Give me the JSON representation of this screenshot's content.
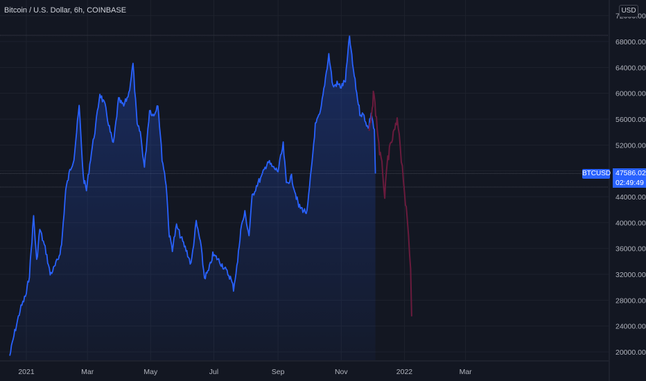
{
  "header": {
    "title": "Bitcoin / U.S. Dollar, 6h, COINBASE",
    "currency": "USD"
  },
  "price_label": {
    "symbol": "BTCUSD",
    "price": "47586.02",
    "countdown": "02:49:49"
  },
  "colors": {
    "background": "#131722",
    "line": "#2962ff",
    "projection": "#6a1b3d",
    "grid": "#1e222d"
  },
  "chart_data": {
    "type": "line",
    "title": "Bitcoin / U.S. Dollar, 6h, COINBASE",
    "xlabel": "",
    "ylabel": "",
    "x_tick_labels": [
      "2021",
      "Mar",
      "May",
      "Jul",
      "Sep",
      "Nov",
      "2022",
      "Mar"
    ],
    "y_tick_labels": [
      "20000.00",
      "24000.00",
      "28000.00",
      "32000.00",
      "36000.00",
      "40000.00",
      "44000.00",
      "48000.00",
      "52000.00",
      "56000.00",
      "60000.00",
      "64000.00",
      "68000.00",
      "72000.00"
    ],
    "ylim": [
      20000,
      72000
    ],
    "grid": true,
    "series": [
      {
        "values": [
          [
            "2020-12-16",
            19400
          ],
          [
            "2020-12-20",
            22500
          ],
          [
            "2020-12-26",
            26500
          ],
          [
            "2021-01-01",
            29000
          ],
          [
            "2021-01-04",
            32000
          ],
          [
            "2021-01-08",
            41000
          ],
          [
            "2021-01-11",
            34000
          ],
          [
            "2021-01-14",
            39000
          ],
          [
            "2021-01-20",
            35500
          ],
          [
            "2021-01-24",
            32000
          ],
          [
            "2021-01-28",
            33000
          ],
          [
            "2021-02-01",
            34500
          ],
          [
            "2021-02-04",
            36500
          ],
          [
            "2021-02-08",
            45000
          ],
          [
            "2021-02-12",
            48000
          ],
          [
            "2021-02-16",
            50000
          ],
          [
            "2021-02-21",
            58000
          ],
          [
            "2021-02-25",
            47000
          ],
          [
            "2021-02-28",
            45000
          ],
          [
            "2021-03-04",
            50000
          ],
          [
            "2021-03-09",
            55000
          ],
          [
            "2021-03-13",
            60000
          ],
          [
            "2021-03-18",
            58000
          ],
          [
            "2021-03-23",
            54000
          ],
          [
            "2021-03-26",
            52000
          ],
          [
            "2021-03-31",
            59000
          ],
          [
            "2021-04-05",
            58000
          ],
          [
            "2021-04-10",
            60000
          ],
          [
            "2021-04-14",
            64500
          ],
          [
            "2021-04-18",
            55000
          ],
          [
            "2021-04-21",
            54000
          ],
          [
            "2021-04-25",
            48500
          ],
          [
            "2021-04-30",
            57500
          ],
          [
            "2021-05-04",
            56500
          ],
          [
            "2021-05-08",
            58500
          ],
          [
            "2021-05-12",
            50000
          ],
          [
            "2021-05-16",
            46000
          ],
          [
            "2021-05-19",
            38000
          ],
          [
            "2021-05-22",
            36000
          ],
          [
            "2021-05-26",
            39500
          ],
          [
            "2021-06-01",
            37000
          ],
          [
            "2021-06-05",
            35500
          ],
          [
            "2021-06-09",
            33500
          ],
          [
            "2021-06-14",
            40000
          ],
          [
            "2021-06-18",
            37000
          ],
          [
            "2021-06-22",
            31500
          ],
          [
            "2021-06-26",
            32500
          ],
          [
            "2021-06-30",
            35000
          ],
          [
            "2021-07-04",
            34500
          ],
          [
            "2021-07-09",
            33500
          ],
          [
            "2021-07-13",
            32500
          ],
          [
            "2021-07-17",
            31500
          ],
          [
            "2021-07-20",
            29800
          ],
          [
            "2021-07-24",
            34000
          ],
          [
            "2021-07-27",
            39000
          ],
          [
            "2021-07-31",
            41500
          ],
          [
            "2021-08-04",
            38000
          ],
          [
            "2021-08-07",
            44000
          ],
          [
            "2021-08-12",
            46000
          ],
          [
            "2021-08-16",
            47000
          ],
          [
            "2021-08-22",
            49500
          ],
          [
            "2021-08-27",
            48500
          ],
          [
            "2021-09-01",
            48000
          ],
          [
            "2021-09-06",
            52000
          ],
          [
            "2021-09-09",
            46000
          ],
          [
            "2021-09-14",
            47000
          ],
          [
            "2021-09-21",
            42500
          ],
          [
            "2021-09-25",
            42000
          ],
          [
            "2021-09-29",
            41500
          ],
          [
            "2021-10-03",
            48000
          ],
          [
            "2021-10-07",
            55000
          ],
          [
            "2021-10-12",
            57000
          ],
          [
            "2021-10-16",
            61500
          ],
          [
            "2021-10-20",
            66000
          ],
          [
            "2021-10-24",
            61000
          ],
          [
            "2021-10-28",
            61500
          ],
          [
            "2021-11-01",
            61000
          ],
          [
            "2021-11-05",
            62000
          ],
          [
            "2021-11-09",
            68800
          ],
          [
            "2021-11-12",
            64500
          ],
          [
            "2021-11-16",
            60000
          ],
          [
            "2021-11-19",
            57000
          ],
          [
            "2021-11-23",
            56500
          ],
          [
            "2021-11-27",
            54500
          ],
          [
            "2021-11-30",
            57000
          ],
          [
            "2021-12-03",
            54000
          ],
          [
            "2021-12-04",
            47600
          ]
        ]
      },
      {
        "values": [
          [
            "2021-11-28",
            54000
          ],
          [
            "2021-12-01",
            57000
          ],
          [
            "2021-12-02",
            60500
          ],
          [
            "2021-12-05",
            56000
          ],
          [
            "2021-12-08",
            51000
          ],
          [
            "2021-12-11",
            48000
          ],
          [
            "2021-12-13",
            44000
          ],
          [
            "2021-12-16",
            50000
          ],
          [
            "2021-12-19",
            52000
          ],
          [
            "2021-12-22",
            54000
          ],
          [
            "2021-12-25",
            55500
          ],
          [
            "2021-12-27",
            54000
          ],
          [
            "2021-12-29",
            50000
          ],
          [
            "2021-12-31",
            47000
          ],
          [
            "2022-01-02",
            43000
          ],
          [
            "2022-01-05",
            38000
          ],
          [
            "2022-01-07",
            33000
          ],
          [
            "2022-01-08",
            25500
          ]
        ]
      }
    ],
    "last_price": 47586.02
  }
}
